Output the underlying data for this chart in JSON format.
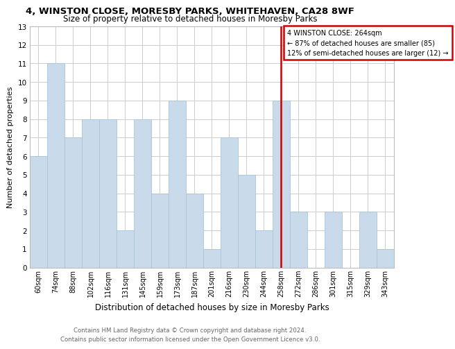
{
  "title1": "4, WINSTON CLOSE, MORESBY PARKS, WHITEHAVEN, CA28 8WF",
  "title2": "Size of property relative to detached houses in Moresby Parks",
  "xlabel": "Distribution of detached houses by size in Moresby Parks",
  "ylabel": "Number of detached properties",
  "categories": [
    "60sqm",
    "74sqm",
    "88sqm",
    "102sqm",
    "116sqm",
    "131sqm",
    "145sqm",
    "159sqm",
    "173sqm",
    "187sqm",
    "201sqm",
    "216sqm",
    "230sqm",
    "244sqm",
    "258sqm",
    "272sqm",
    "286sqm",
    "301sqm",
    "315sqm",
    "329sqm",
    "343sqm"
  ],
  "values": [
    6,
    11,
    7,
    8,
    8,
    2,
    8,
    4,
    9,
    4,
    1,
    7,
    5,
    2,
    9,
    3,
    0,
    3,
    0,
    3,
    1
  ],
  "bar_color": "#c9daea",
  "bar_edge_color": "#a8c4d8",
  "marker_index": 14,
  "marker_label": "4 WINSTON CLOSE: 264sqm",
  "marker_line_color": "#cc0000",
  "annotation_line1": "← 87% of detached houses are smaller (85)",
  "annotation_line2": "12% of semi-detached houses are larger (12) →",
  "box_edge_color": "#cc0000",
  "ylim": [
    0,
    13
  ],
  "yticks": [
    0,
    1,
    2,
    3,
    4,
    5,
    6,
    7,
    8,
    9,
    10,
    11,
    12,
    13
  ],
  "footer1": "Contains HM Land Registry data © Crown copyright and database right 2024.",
  "footer2": "Contains public sector information licensed under the Open Government Licence v3.0."
}
